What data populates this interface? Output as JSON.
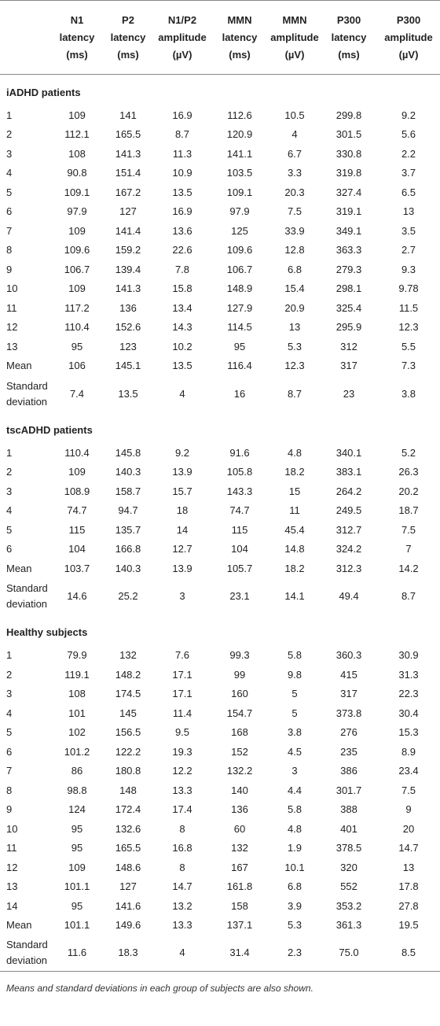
{
  "header": {
    "columns": [
      [
        "N1",
        "latency",
        "(ms)"
      ],
      [
        "P2",
        "latency",
        "(ms)"
      ],
      [
        "N1/P2",
        "amplitude",
        "(µV)"
      ],
      [
        "MMN",
        "latency",
        "(ms)"
      ],
      [
        "MMN",
        "amplitude",
        "(µV)"
      ],
      [
        "P300",
        "latency",
        "(ms)"
      ],
      [
        "P300",
        "amplitude",
        "(µV)"
      ]
    ]
  },
  "groups": [
    {
      "title": "iADHD patients",
      "rows": [
        [
          "1",
          "109",
          "141",
          "16.9",
          "112.6",
          "10.5",
          "299.8",
          "9.2"
        ],
        [
          "2",
          "112.1",
          "165.5",
          "8.7",
          "120.9",
          "4",
          "301.5",
          "5.6"
        ],
        [
          "3",
          "108",
          "141.3",
          "11.3",
          "141.1",
          "6.7",
          "330.8",
          "2.2"
        ],
        [
          "4",
          "90.8",
          "151.4",
          "10.9",
          "103.5",
          "3.3",
          "319.8",
          "3.7"
        ],
        [
          "5",
          "109.1",
          "167.2",
          "13.5",
          "109.1",
          "20.3",
          "327.4",
          "6.5"
        ],
        [
          "6",
          "97.9",
          "127",
          "16.9",
          "97.9",
          "7.5",
          "319.1",
          "13"
        ],
        [
          "7",
          "109",
          "141.4",
          "13.6",
          "125",
          "33.9",
          "349.1",
          "3.5"
        ],
        [
          "8",
          "109.6",
          "159.2",
          "22.6",
          "109.6",
          "12.8",
          "363.3",
          "2.7"
        ],
        [
          "9",
          "106.7",
          "139.4",
          "7.8",
          "106.7",
          "6.8",
          "279.3",
          "9.3"
        ],
        [
          "10",
          "109",
          "141.3",
          "15.8",
          "148.9",
          "15.4",
          "298.1",
          "9.78"
        ],
        [
          "11",
          "117.2",
          "136",
          "13.4",
          "127.9",
          "20.9",
          "325.4",
          "11.5"
        ],
        [
          "12",
          "110.4",
          "152.6",
          "14.3",
          "114.5",
          "13",
          "295.9",
          "12.3"
        ],
        [
          "13",
          "95",
          "123",
          "10.2",
          "95",
          "5.3",
          "312",
          "5.5"
        ],
        [
          "Mean",
          "106",
          "145.1",
          "13.5",
          "116.4",
          "12.3",
          "317",
          "7.3"
        ],
        [
          "Standard deviation",
          "7.4",
          "13.5",
          "4",
          "16",
          "8.7",
          "23",
          "3.8"
        ]
      ]
    },
    {
      "title": "tscADHD patients",
      "rows": [
        [
          "1",
          "110.4",
          "145.8",
          "9.2",
          "91.6",
          "4.8",
          "340.1",
          "5.2"
        ],
        [
          "2",
          "109",
          "140.3",
          "13.9",
          "105.8",
          "18.2",
          "383.1",
          "26.3"
        ],
        [
          "3",
          "108.9",
          "158.7",
          "15.7",
          "143.3",
          "15",
          "264.2",
          "20.2"
        ],
        [
          "4",
          "74.7",
          "94.7",
          "18",
          "74.7",
          "11",
          "249.5",
          "18.7"
        ],
        [
          "5",
          "115",
          "135.7",
          "14",
          "115",
          "45.4",
          "312.7",
          "7.5"
        ],
        [
          "6",
          "104",
          "166.8",
          "12.7",
          "104",
          "14.8",
          "324.2",
          "7"
        ],
        [
          "Mean",
          "103.7",
          "140.3",
          "13.9",
          "105.7",
          "18.2",
          "312.3",
          "14.2"
        ],
        [
          "Standard deviation",
          "14.6",
          "25.2",
          "3",
          "23.1",
          "14.1",
          "49.4",
          "8.7"
        ]
      ]
    },
    {
      "title": "Healthy subjects",
      "rows": [
        [
          "1",
          "79.9",
          "132",
          "7.6",
          "99.3",
          "5.8",
          "360.3",
          "30.9"
        ],
        [
          "2",
          "119.1",
          "148.2",
          "17.1",
          "99",
          "9.8",
          "415",
          "31.3"
        ],
        [
          "3",
          "108",
          "174.5",
          "17.1",
          "160",
          "5",
          "317",
          "22.3"
        ],
        [
          "4",
          "101",
          "145",
          "11.4",
          "154.7",
          "5",
          "373.8",
          "30.4"
        ],
        [
          "5",
          "102",
          "156.5",
          "9.5",
          "168",
          "3.8",
          "276",
          "15.3"
        ],
        [
          "6",
          "101.2",
          "122.2",
          "19.3",
          "152",
          "4.5",
          "235",
          "8.9"
        ],
        [
          "7",
          "86",
          "180.8",
          "12.2",
          "132.2",
          "3",
          "386",
          "23.4"
        ],
        [
          "8",
          "98.8",
          "148",
          "13.3",
          "140",
          "4.4",
          "301.7",
          "7.5"
        ],
        [
          "9",
          "124",
          "172.4",
          "17.4",
          "136",
          "5.8",
          "388",
          "9"
        ],
        [
          "10",
          "95",
          "132.6",
          "8",
          "60",
          "4.8",
          "401",
          "20"
        ],
        [
          "11",
          "95",
          "165.5",
          "16.8",
          "132",
          "1.9",
          "378.5",
          "14.7"
        ],
        [
          "12",
          "109",
          "148.6",
          "8",
          "167",
          "10.1",
          "320",
          "13"
        ],
        [
          "13",
          "101.1",
          "127",
          "14.7",
          "161.8",
          "6.8",
          "552",
          "17.8"
        ],
        [
          "14",
          "95",
          "141.6",
          "13.2",
          "158",
          "3.9",
          "353.2",
          "27.8"
        ],
        [
          "Mean",
          "101.1",
          "149.6",
          "13.3",
          "137.1",
          "5.3",
          "361.3",
          "19.5"
        ],
        [
          "Standard deviation",
          "11.6",
          "18.3",
          "4",
          "31.4",
          "2.3",
          "75.0",
          "8.5"
        ]
      ]
    }
  ],
  "footnote": "Means and standard deviations in each group of subjects are also shown."
}
